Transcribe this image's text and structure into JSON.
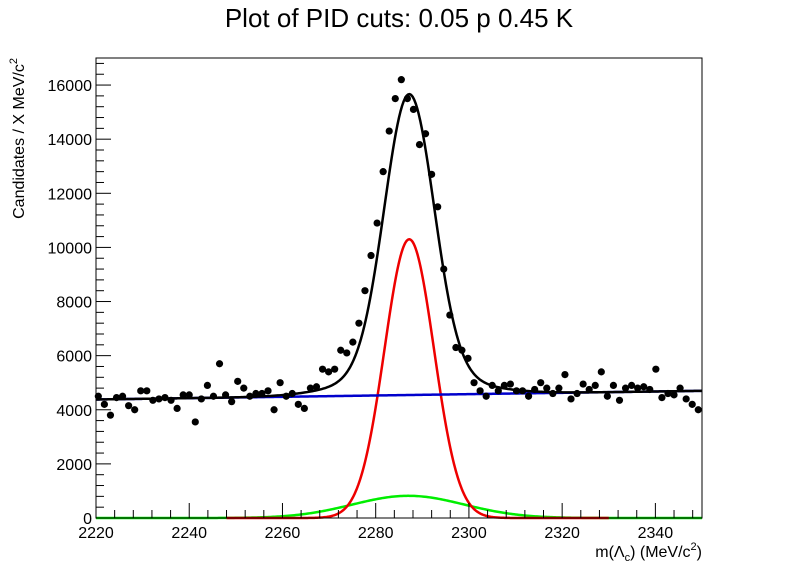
{
  "chart_data": {
    "type": "scatter",
    "title": "Plot of PID cuts: 0.05 p 0.45 K",
    "xlabel": {
      "prefix": "m(",
      "symbol": "Λ",
      "sub": "c",
      "suffix": ") (MeV/c",
      "sup": "2",
      "close": ")"
    },
    "ylabel": {
      "main": "Candidates / X MeV/c",
      "sup": "2"
    },
    "xlim": [
      2220,
      2350
    ],
    "ylim": [
      0,
      17000
    ],
    "xticks": [
      2220,
      2240,
      2260,
      2280,
      2300,
      2320,
      2340
    ],
    "xtick_labels": [
      "2220",
      "2240",
      "2260",
      "2280",
      "2300",
      "2320",
      "2340"
    ],
    "yticks": [
      0,
      2000,
      4000,
      6000,
      8000,
      10000,
      12000,
      14000,
      16000
    ],
    "ytick_labels": [
      "0",
      "2000",
      "4000",
      "6000",
      "8000",
      "10000",
      "12000",
      "14000",
      "16000"
    ],
    "grid": false,
    "series": [
      {
        "kind": "points",
        "color": "#000000",
        "x": [
          2220.5,
          2221.8,
          2223.1,
          2224.4,
          2225.7,
          2227.0,
          2228.3,
          2229.6,
          2230.9,
          2232.2,
          2233.5,
          2234.8,
          2236.1,
          2237.4,
          2238.7,
          2240.0,
          2241.3,
          2242.6,
          2243.9,
          2245.2,
          2246.5,
          2247.8,
          2249.1,
          2250.4,
          2251.7,
          2253.0,
          2254.3,
          2255.6,
          2256.9,
          2258.2,
          2259.5,
          2260.8,
          2262.1,
          2263.4,
          2264.7,
          2266.0,
          2267.3,
          2268.6,
          2269.9,
          2271.2,
          2272.5,
          2273.8,
          2275.1,
          2276.4,
          2277.7,
          2279.0,
          2280.3,
          2281.6,
          2282.9,
          2284.2,
          2285.5,
          2286.8,
          2288.1,
          2289.4,
          2290.7,
          2292.0,
          2293.3,
          2294.6,
          2295.9,
          2297.2,
          2298.5,
          2299.8,
          2301.1,
          2302.4,
          2303.7,
          2305.0,
          2306.3,
          2307.6,
          2308.9,
          2310.2,
          2311.5,
          2312.8,
          2314.1,
          2315.4,
          2316.7,
          2318.0,
          2319.3,
          2320.6,
          2321.9,
          2323.2,
          2324.5,
          2325.8,
          2327.1,
          2328.4,
          2329.7,
          2331.0,
          2332.3,
          2333.6,
          2334.9,
          2336.2,
          2337.5,
          2338.8,
          2340.1,
          2341.4,
          2342.7,
          2344.0,
          2345.3,
          2346.6,
          2347.9,
          2349.2
        ],
        "y": [
          4500,
          4200,
          3800,
          4450,
          4500,
          4150,
          4000,
          4700,
          4700,
          4350,
          4400,
          4450,
          4350,
          4050,
          4550,
          4550,
          3550,
          4400,
          4900,
          4500,
          5700,
          4550,
          4300,
          5050,
          4800,
          4500,
          4600,
          4600,
          4700,
          4000,
          5000,
          4500,
          4600,
          4200,
          4050,
          4800,
          4850,
          5500,
          5400,
          5500,
          6200,
          6100,
          6500,
          7200,
          8400,
          9700,
          10900,
          12800,
          14300,
          15500,
          16200,
          15500,
          15100,
          13800,
          14200,
          12700,
          11500,
          9200,
          7500,
          6300,
          6200,
          5900,
          5000,
          4700,
          4500,
          4900,
          4700,
          4900,
          4950,
          4700,
          4700,
          4500,
          4750,
          5000,
          4800,
          4600,
          4800,
          5300,
          4400,
          4600,
          4950,
          4750,
          4900,
          5400,
          4500,
          4900,
          4350,
          4800,
          4900,
          4800,
          4850,
          4750,
          5500,
          4450,
          4600,
          4550,
          4800,
          4400,
          4200,
          4000
        ]
      },
      {
        "kind": "total-fit",
        "color": "#000000",
        "width": 2.5
      },
      {
        "kind": "background",
        "color": "#0000cc",
        "width": 2.5
      },
      {
        "kind": "signal-narrow",
        "color": "#ee0000",
        "width": 2.5,
        "range": [
          2248,
          2330
        ]
      },
      {
        "kind": "signal-wide",
        "color": "#00ee00",
        "width": 2.5,
        "range": [
          2220,
          2350
        ]
      }
    ],
    "model": {
      "background": {
        "y_at_xmin": 4380,
        "y_at_xmax": 4700
      },
      "narrow": {
        "amplitude": 10300,
        "mean": 2287.2,
        "sigma": 5.3
      },
      "wide": {
        "amplitude": 820,
        "mean": 2287.0,
        "sigma": 12.0
      }
    }
  }
}
